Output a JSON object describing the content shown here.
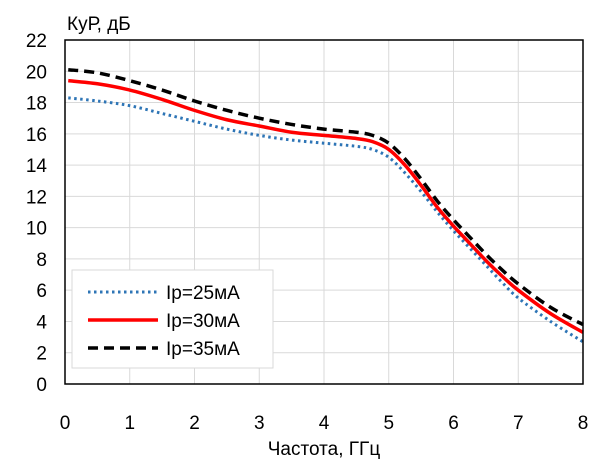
{
  "chart_data": {
    "type": "line",
    "title": "",
    "xlabel": "Частота, ГГц",
    "ylabel": "КуР, дБ",
    "xlim": [
      0,
      8
    ],
    "ylim": [
      0,
      22
    ],
    "x_ticks": [
      "0",
      "1",
      "2",
      "3",
      "4",
      "5",
      "6",
      "7",
      "8"
    ],
    "y_ticks": [
      "0",
      "2",
      "4",
      "6",
      "8",
      "10",
      "12",
      "14",
      "16",
      "18",
      "20",
      "22"
    ],
    "grid": true,
    "legend_position": "bottom-left",
    "series": [
      {
        "name": "Ip=25мА",
        "color": "#2e75b6",
        "style": "dotted",
        "points": [
          [
            0.05,
            18.3
          ],
          [
            0.5,
            18.1
          ],
          [
            1,
            17.8
          ],
          [
            1.5,
            17.3
          ],
          [
            2,
            16.8
          ],
          [
            2.5,
            16.3
          ],
          [
            3,
            15.9
          ],
          [
            3.5,
            15.6
          ],
          [
            4,
            15.4
          ],
          [
            4.5,
            15.2
          ],
          [
            4.75,
            15.0
          ],
          [
            5,
            14.5
          ],
          [
            5.25,
            13.5
          ],
          [
            5.5,
            12.3
          ],
          [
            5.75,
            11.0
          ],
          [
            6,
            9.8
          ],
          [
            6.25,
            8.7
          ],
          [
            6.5,
            7.6
          ],
          [
            6.75,
            6.5
          ],
          [
            7,
            5.5
          ],
          [
            7.5,
            4.0
          ],
          [
            8,
            2.7
          ]
        ]
      },
      {
        "name": "Ip=30мА",
        "color": "#ff0000",
        "style": "solid",
        "points": [
          [
            0.05,
            19.4
          ],
          [
            0.5,
            19.2
          ],
          [
            1,
            18.8
          ],
          [
            1.5,
            18.2
          ],
          [
            2,
            17.5
          ],
          [
            2.5,
            16.9
          ],
          [
            3,
            16.5
          ],
          [
            3.5,
            16.1
          ],
          [
            4,
            15.9
          ],
          [
            4.5,
            15.7
          ],
          [
            4.75,
            15.5
          ],
          [
            5,
            15.0
          ],
          [
            5.25,
            14.0
          ],
          [
            5.5,
            12.7
          ],
          [
            5.75,
            11.3
          ],
          [
            6,
            10.1
          ],
          [
            6.25,
            9.0
          ],
          [
            6.5,
            7.9
          ],
          [
            6.75,
            6.9
          ],
          [
            7,
            6.0
          ],
          [
            7.5,
            4.5
          ],
          [
            8,
            3.3
          ]
        ]
      },
      {
        "name": "Ip=35мА",
        "color": "#000000",
        "style": "dashed",
        "points": [
          [
            0.05,
            20.1
          ],
          [
            0.5,
            19.9
          ],
          [
            1,
            19.4
          ],
          [
            1.5,
            18.8
          ],
          [
            2,
            18.1
          ],
          [
            2.5,
            17.5
          ],
          [
            3,
            17.0
          ],
          [
            3.5,
            16.6
          ],
          [
            4,
            16.3
          ],
          [
            4.5,
            16.1
          ],
          [
            4.75,
            15.9
          ],
          [
            5,
            15.4
          ],
          [
            5.25,
            14.4
          ],
          [
            5.5,
            13.1
          ],
          [
            5.75,
            11.7
          ],
          [
            6,
            10.5
          ],
          [
            6.25,
            9.4
          ],
          [
            6.5,
            8.3
          ],
          [
            6.75,
            7.3
          ],
          [
            7,
            6.4
          ],
          [
            7.5,
            4.9
          ],
          [
            8,
            3.8
          ]
        ]
      }
    ]
  }
}
